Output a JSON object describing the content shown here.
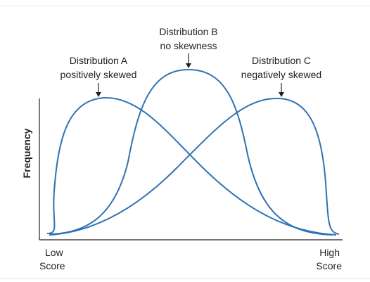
{
  "colors": {
    "curve": "#2e73b4",
    "axis": "#222222",
    "text": "#222222"
  },
  "labels": {
    "dist_a_name": "Distribution A",
    "dist_a_desc": "positively skewed",
    "dist_b_name": "Distribution B",
    "dist_b_desc": "no skewness",
    "dist_c_name": "Distribution C",
    "dist_c_desc": "negatively skewed",
    "y_axis": "Frequency",
    "x_low_1": "Low",
    "x_low_2": "Score",
    "x_high_1": "High",
    "x_high_2": "Score"
  }
}
